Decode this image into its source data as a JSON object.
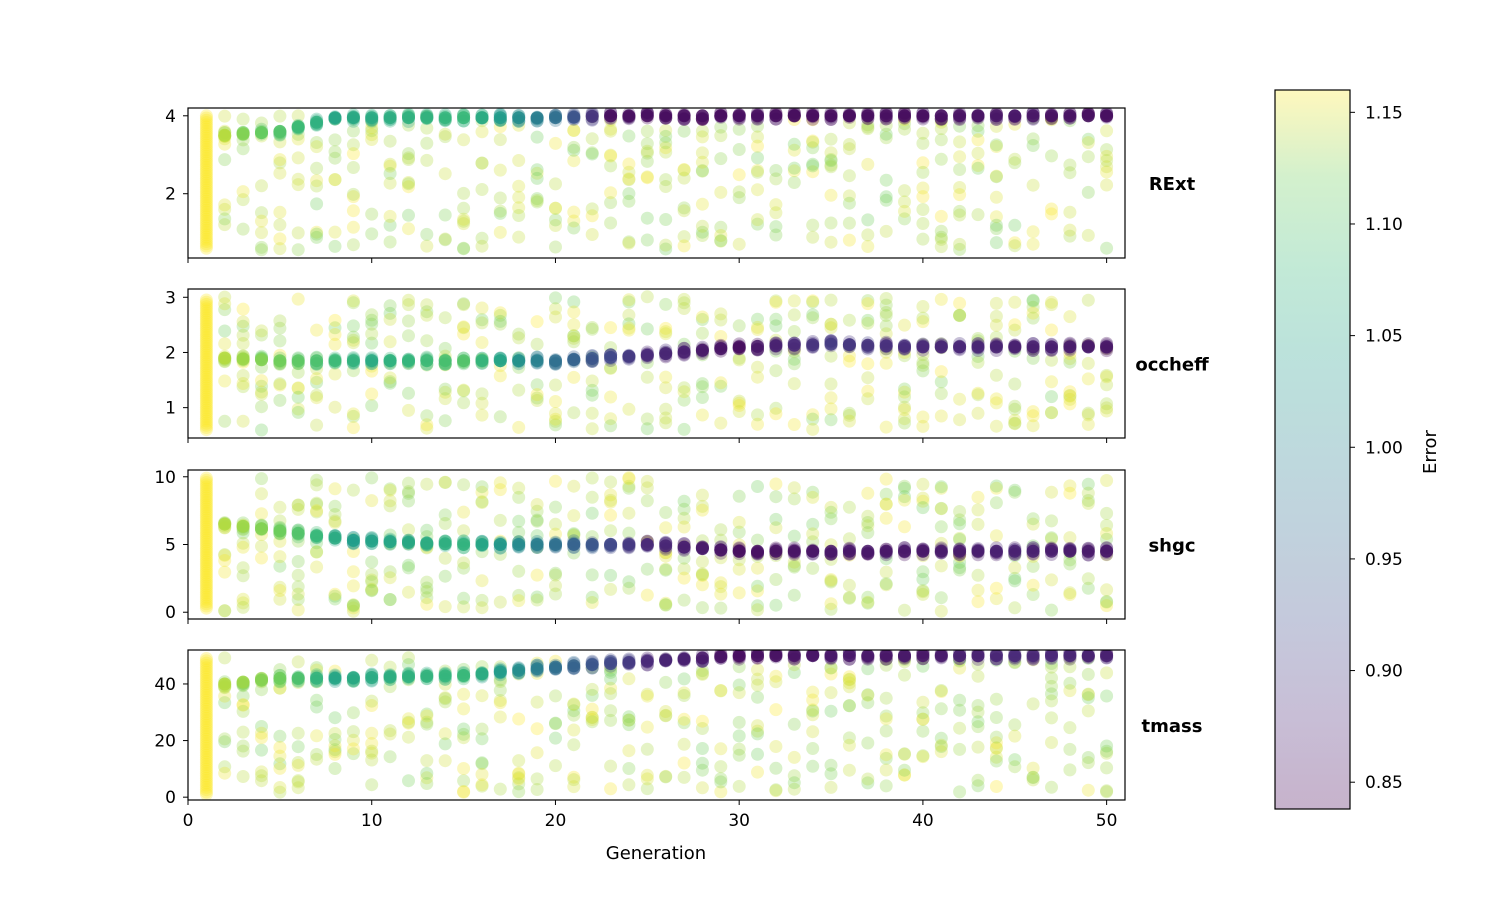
{
  "chart_data": {
    "type": "scatter",
    "xlabel": "Generation",
    "xlim": [
      0,
      51
    ],
    "x_ticks": [
      0,
      10,
      20,
      30,
      40,
      50
    ],
    "colorbar": {
      "label": "Error",
      "range": [
        0.838,
        1.16
      ],
      "ticks": [
        "0.85",
        "0.90",
        "0.95",
        "1.00",
        "1.05",
        "1.10",
        "1.15"
      ],
      "colormap": "viridis",
      "alpha": 0.3
    },
    "panels": [
      {
        "name": "RExt",
        "ylim": [
          0.35,
          4.2
        ],
        "y_ticks": [
          2,
          4
        ],
        "generation_1_range": [
          0.6,
          4.0
        ],
        "converged_value": 4.0,
        "trend": [
          {
            "gen": 2,
            "y": 3.5,
            "error": 1.14
          },
          {
            "gen": 5,
            "y": 3.6,
            "error": 1.1
          },
          {
            "gen": 8,
            "y": 3.95,
            "error": 1.05
          },
          {
            "gen": 15,
            "y": 3.95,
            "error": 1.08
          },
          {
            "gen": 20,
            "y": 3.95,
            "error": 0.97
          },
          {
            "gen": 23,
            "y": 4.0,
            "error": 0.85
          },
          {
            "gen": 30,
            "y": 4.0,
            "error": 0.85
          },
          {
            "gen": 36,
            "y": 4.0,
            "error": 0.85
          },
          {
            "gen": 40,
            "y": 4.0,
            "error": 0.85
          },
          {
            "gen": 45,
            "y": 4.0,
            "error": 0.86
          },
          {
            "gen": 50,
            "y": 4.0,
            "error": 0.85
          }
        ]
      },
      {
        "name": "occheff",
        "ylim": [
          0.45,
          3.15
        ],
        "y_ticks": [
          1,
          2,
          3
        ],
        "generation_1_range": [
          0.6,
          2.95
        ],
        "converged_value": 2.1,
        "trend": [
          {
            "gen": 2,
            "y": 1.9,
            "error": 1.14
          },
          {
            "gen": 5,
            "y": 1.85,
            "error": 1.12
          },
          {
            "gen": 10,
            "y": 1.85,
            "error": 1.06
          },
          {
            "gen": 15,
            "y": 1.85,
            "error": 1.1
          },
          {
            "gen": 20,
            "y": 1.85,
            "error": 0.97
          },
          {
            "gen": 25,
            "y": 1.95,
            "error": 0.88
          },
          {
            "gen": 30,
            "y": 2.1,
            "error": 0.85
          },
          {
            "gen": 35,
            "y": 2.15,
            "error": 0.9
          },
          {
            "gen": 40,
            "y": 2.1,
            "error": 0.88
          },
          {
            "gen": 45,
            "y": 2.1,
            "error": 0.87
          },
          {
            "gen": 50,
            "y": 2.1,
            "error": 0.86
          }
        ]
      },
      {
        "name": "shgc",
        "ylim": [
          -0.5,
          10.5
        ],
        "y_ticks": [
          0,
          5,
          10
        ],
        "generation_1_range": [
          0.3,
          9.9
        ],
        "converged_value": 4.5,
        "trend": [
          {
            "gen": 2,
            "y": 6.5,
            "error": 1.14
          },
          {
            "gen": 5,
            "y": 6.0,
            "error": 1.12
          },
          {
            "gen": 9,
            "y": 5.3,
            "error": 1.04
          },
          {
            "gen": 15,
            "y": 5.0,
            "error": 1.07
          },
          {
            "gen": 20,
            "y": 5.0,
            "error": 0.97
          },
          {
            "gen": 25,
            "y": 5.0,
            "error": 0.88
          },
          {
            "gen": 30,
            "y": 4.5,
            "error": 0.85
          },
          {
            "gen": 35,
            "y": 4.5,
            "error": 0.86
          },
          {
            "gen": 40,
            "y": 4.5,
            "error": 0.86
          },
          {
            "gen": 45,
            "y": 4.5,
            "error": 0.87
          },
          {
            "gen": 50,
            "y": 4.5,
            "error": 0.86
          }
        ]
      },
      {
        "name": "tmass",
        "ylim": [
          -1,
          52
        ],
        "y_ticks": [
          0,
          20,
          40
        ],
        "generation_1_range": [
          1,
          49
        ],
        "converged_value": 50,
        "trend": [
          {
            "gen": 2,
            "y": 40,
            "error": 1.14
          },
          {
            "gen": 5,
            "y": 42,
            "error": 1.12
          },
          {
            "gen": 8,
            "y": 42,
            "error": 1.05
          },
          {
            "gen": 15,
            "y": 43,
            "error": 1.08
          },
          {
            "gen": 20,
            "y": 46,
            "error": 0.97
          },
          {
            "gen": 25,
            "y": 48,
            "error": 0.88
          },
          {
            "gen": 30,
            "y": 50,
            "error": 0.85
          },
          {
            "gen": 35,
            "y": 50,
            "error": 0.86
          },
          {
            "gen": 40,
            "y": 50,
            "error": 0.86
          },
          {
            "gen": 45,
            "y": 50,
            "error": 0.88
          },
          {
            "gen": 50,
            "y": 50,
            "error": 0.87
          }
        ]
      }
    ]
  }
}
